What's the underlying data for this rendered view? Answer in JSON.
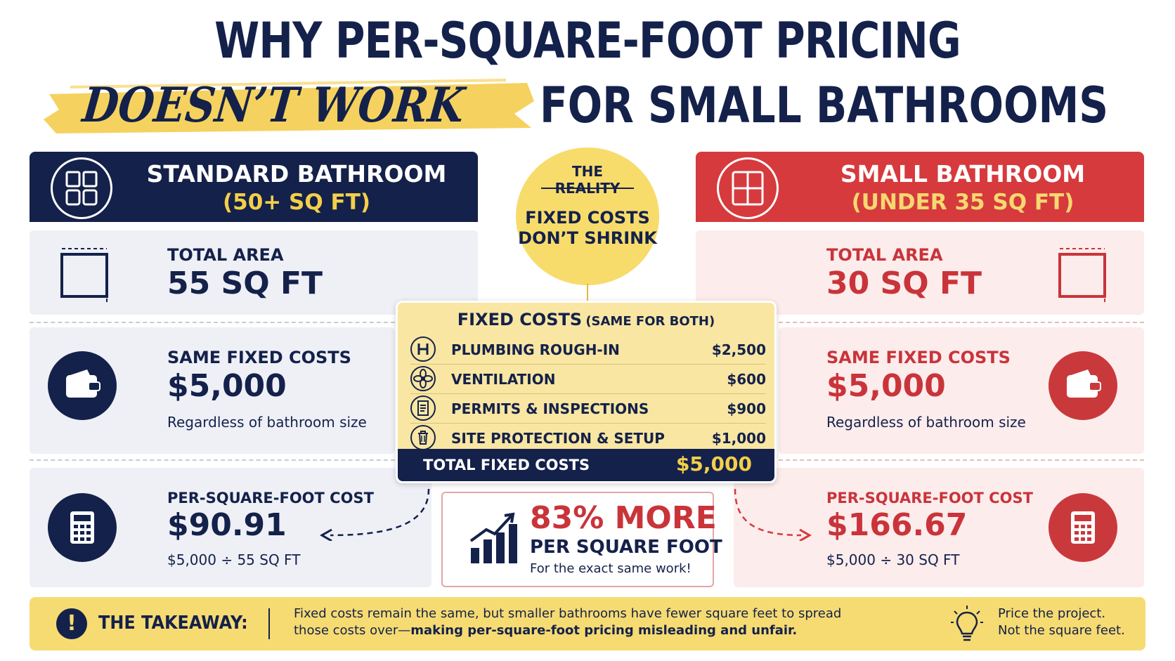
{
  "title": {
    "line1": "WHY PER-SQUARE-FOOT PRICING",
    "line2_highlight": "DOESN’T WORK",
    "line2_rest": "FOR SMALL BATHROOMS"
  },
  "standard": {
    "header": "STANDARD BATHROOM",
    "subheader": "(50+ SQ FT)",
    "area_label": "TOTAL AREA",
    "area_value": "55 SQ FT",
    "fixed_label": "SAME FIXED COSTS",
    "fixed_value": "$5,000",
    "fixed_note": "Regardless of bathroom size",
    "psf_label": "PER-SQUARE-FOOT COST",
    "psf_value": "$90.91",
    "psf_calc": "$5,000 ÷ 55 SQ FT"
  },
  "small": {
    "header": "SMALL BATHROOM",
    "subheader": "(UNDER 35 SQ FT)",
    "area_label": "TOTAL AREA",
    "area_value": "30 SQ FT",
    "fixed_label": "SAME FIXED COSTS",
    "fixed_value": "$5,000",
    "fixed_note": "Regardless of bathroom size",
    "psf_label": "PER-SQUARE-FOOT COST",
    "psf_value": "$166.67",
    "psf_calc": "$5,000 ÷ 30 SQ FT"
  },
  "reality": {
    "line1": "THE",
    "line2": "REALITY",
    "line3": "FIXED COSTS",
    "line4": "DON’T SHRINK"
  },
  "fixed_costs": {
    "title": "FIXED COSTS",
    "title_note": "(SAME FOR BOTH)",
    "items": [
      {
        "name": "PLUMBING ROUGH-IN",
        "value": "$2,500",
        "icon": "pipe-icon"
      },
      {
        "name": "VENTILATION",
        "value": "$600",
        "icon": "fan-icon"
      },
      {
        "name": "PERMITS & INSPECTIONS",
        "value": "$900",
        "icon": "document-icon"
      },
      {
        "name": "SITE PROTECTION & SETUP",
        "value": "$1,000",
        "icon": "trash-can-icon"
      }
    ],
    "total_label": "TOTAL FIXED COSTS",
    "total_value": "$5,000"
  },
  "comparison": {
    "headline": "83% MORE",
    "subline": "PER SQUARE FOOT",
    "note": "For the exact same work!"
  },
  "takeaway": {
    "label": "THE TAKEAWAY:",
    "text_line1": "Fixed costs remain the same, but smaller bathrooms have fewer square feet to spread",
    "text_line2": "those costs over—",
    "text_bold": "making per-square-foot pricing misleading and unfair.",
    "tip_line1": "Price the project.",
    "tip_line2": "Not the square feet."
  },
  "colors": {
    "navy": "#14214a",
    "red": "#d63a3d",
    "yellow": "#f4cf4a",
    "left_panel": "#eef0f6",
    "right_panel": "#fcecec"
  }
}
